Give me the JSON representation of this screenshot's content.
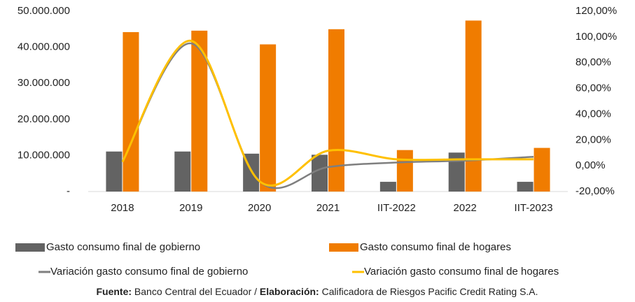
{
  "chart_data": {
    "type": "bar_line",
    "categories": [
      "2018",
      "2019",
      "2020",
      "2021",
      "IIT-2022",
      "2022",
      "IIT-2023"
    ],
    "series": [
      {
        "name": "Gasto consumo final de gobierno",
        "type": "bar",
        "color": "#636363",
        "values": [
          11100000,
          11100000,
          10500000,
          10200000,
          2700000,
          10800000,
          2700000
        ]
      },
      {
        "name": "Gasto consumo final de hogares",
        "type": "bar",
        "color": "#f07c00",
        "values": [
          44200000,
          44600000,
          40800000,
          45000000,
          11500000,
          47400000,
          12100000
        ]
      },
      {
        "name": "Variación gasto consumo final de gobierno",
        "type": "line",
        "axis": "y2",
        "color": "#7f7f7f",
        "values": [
          3,
          95,
          -12,
          -1,
          2.5,
          4,
          7
        ]
      },
      {
        "name": "Variación gasto consumo final de hogares",
        "type": "line",
        "axis": "y2",
        "color": "#ffc000",
        "values": [
          3,
          97,
          -12,
          11.7,
          5,
          5,
          5
        ]
      }
    ],
    "ylim": [
      0,
      50000000
    ],
    "yticks": [
      {
        "value": 0,
        "label": "-"
      },
      {
        "value": 10000000,
        "label": "10.000.000"
      },
      {
        "value": 20000000,
        "label": "20.000.000"
      },
      {
        "value": 30000000,
        "label": "30.000.000"
      },
      {
        "value": 40000000,
        "label": "40.000.000"
      },
      {
        "value": 50000000,
        "label": "50.000.000"
      }
    ],
    "y2lim": [
      -20,
      120
    ],
    "y2ticks": [
      {
        "value": -20,
        "label": "-20,00%"
      },
      {
        "value": 0,
        "label": "0,00%"
      },
      {
        "value": 20,
        "label": "20,00%"
      },
      {
        "value": 40,
        "label": "40,00%"
      },
      {
        "value": 60,
        "label": "60,00%"
      },
      {
        "value": 80,
        "label": "80,00%"
      },
      {
        "value": 100,
        "label": "100,00%"
      },
      {
        "value": 120,
        "label": "120,00%"
      }
    ],
    "grid": false,
    "legend": "bottom",
    "source": [
      "Fuente:",
      " Banco Central del Ecuador / ",
      "Elaboración:",
      " Calificadora de Riesgos Pacific Credit Rating S.A."
    ]
  }
}
